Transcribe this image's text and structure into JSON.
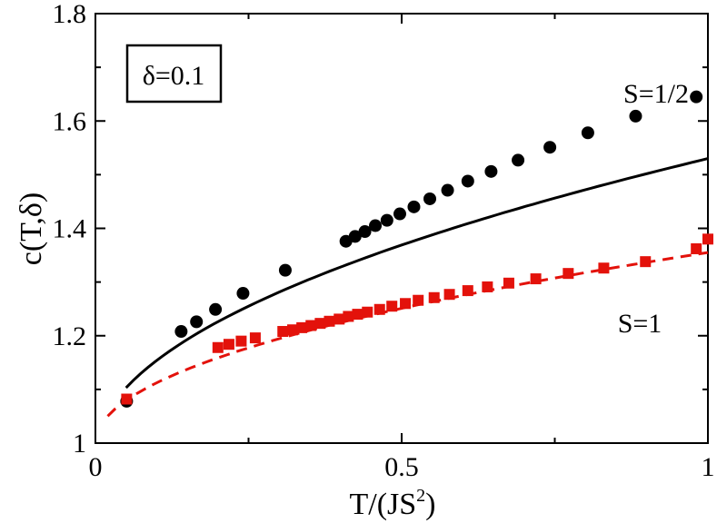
{
  "chart_data": {
    "type": "scatter",
    "xlabel": "T/(JS",
    "xlabel_sup": "2",
    "xlabel_close": ")",
    "ylabel": "c(T,δ)",
    "xlim": [
      0,
      1
    ],
    "ylim": [
      1,
      1.8
    ],
    "x_ticks": [
      {
        "value": 0,
        "label": "0"
      },
      {
        "value": 0.5,
        "label": "0.5"
      },
      {
        "value": 1,
        "label": "1"
      }
    ],
    "y_ticks": [
      {
        "value": 1.0,
        "label": "1"
      },
      {
        "value": 1.2,
        "label": "1.2"
      },
      {
        "value": 1.4,
        "label": "1.4"
      },
      {
        "value": 1.6,
        "label": "1.6"
      },
      {
        "value": 1.8,
        "label": "1.8"
      }
    ],
    "legend_box": "δ=0.1",
    "series": [
      {
        "name": "S=1/2",
        "marker": "circle",
        "color": "#000000",
        "points": [
          [
            0.051,
            1.078
          ],
          [
            0.14,
            1.208
          ],
          [
            0.165,
            1.226
          ],
          [
            0.196,
            1.249
          ],
          [
            0.241,
            1.279
          ],
          [
            0.31,
            1.322
          ],
          [
            0.409,
            1.376
          ],
          [
            0.424,
            1.385
          ],
          [
            0.44,
            1.394
          ],
          [
            0.457,
            1.405
          ],
          [
            0.476,
            1.415
          ],
          [
            0.497,
            1.427
          ],
          [
            0.52,
            1.44
          ],
          [
            0.546,
            1.455
          ],
          [
            0.575,
            1.471
          ],
          [
            0.608,
            1.488
          ],
          [
            0.646,
            1.506
          ],
          [
            0.69,
            1.527
          ],
          [
            0.742,
            1.551
          ],
          [
            0.804,
            1.578
          ],
          [
            0.882,
            1.609
          ],
          [
            0.981,
            1.645
          ]
        ]
      },
      {
        "name": "S=1",
        "marker": "square",
        "color": "#e3120b",
        "points": [
          [
            0.051,
            1.082
          ],
          [
            0.2,
            1.178
          ],
          [
            0.218,
            1.184
          ],
          [
            0.238,
            1.19
          ],
          [
            0.261,
            1.196
          ],
          [
            0.306,
            1.208
          ],
          [
            0.322,
            1.211
          ],
          [
            0.337,
            1.215
          ],
          [
            0.352,
            1.219
          ],
          [
            0.367,
            1.223
          ],
          [
            0.382,
            1.227
          ],
          [
            0.398,
            1.231
          ],
          [
            0.413,
            1.236
          ],
          [
            0.428,
            1.24
          ],
          [
            0.444,
            1.244
          ],
          [
            0.464,
            1.249
          ],
          [
            0.484,
            1.255
          ],
          [
            0.506,
            1.26
          ],
          [
            0.527,
            1.266
          ],
          [
            0.553,
            1.271
          ],
          [
            0.578,
            1.277
          ],
          [
            0.608,
            1.284
          ],
          [
            0.64,
            1.291
          ],
          [
            0.675,
            1.298
          ],
          [
            0.719,
            1.306
          ],
          [
            0.772,
            1.316
          ],
          [
            0.83,
            1.326
          ],
          [
            0.898,
            1.338
          ],
          [
            0.981,
            1.362
          ],
          [
            1.0,
            1.38
          ]
        ]
      }
    ],
    "curves": [
      {
        "name": "S=1/2 fit",
        "style": "solid",
        "color": "#000000",
        "x_range": [
          0.05,
          1.0
        ],
        "a": 0.98,
        "b": 0.55,
        "power": 0.5
      },
      {
        "name": "S=1 fit",
        "style": "dashed",
        "color": "#e3120b",
        "x_range": [
          0.02,
          1.0
        ],
        "a": 1.0,
        "b": 0.355,
        "power": 0.5
      }
    ],
    "annotations": [
      "S=1/2",
      "S=1"
    ]
  }
}
